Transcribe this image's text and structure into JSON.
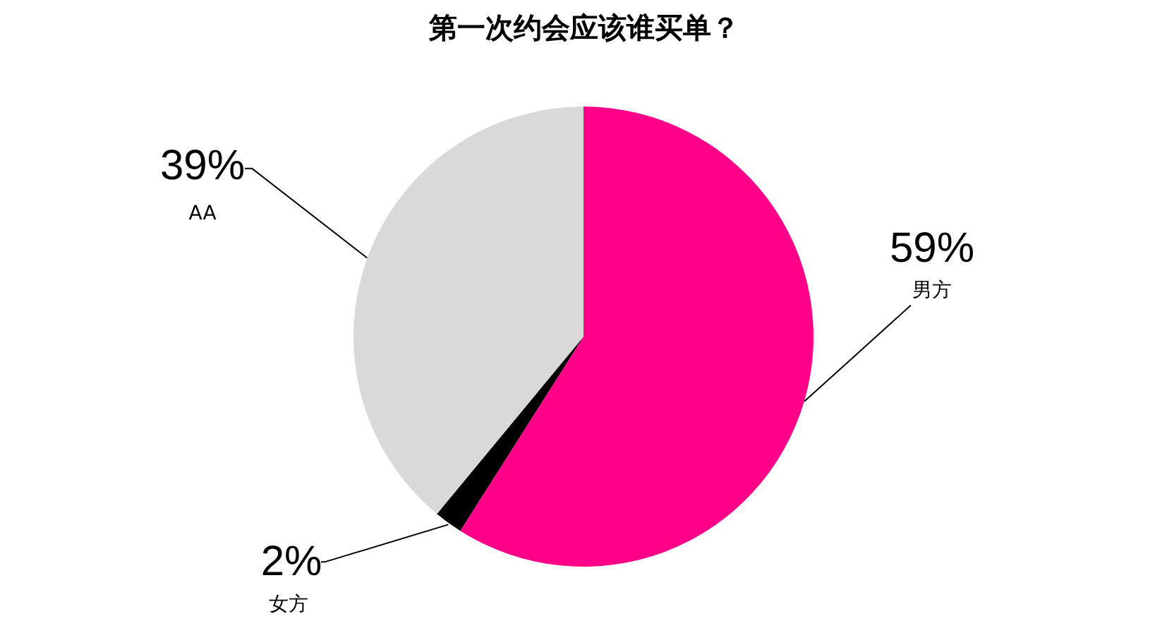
{
  "chart_data": {
    "type": "pie",
    "title": "第一次约会应该谁买单？",
    "categories": [
      "男方",
      "女方",
      "AA"
    ],
    "values": [
      59,
      2,
      39
    ],
    "colors": [
      "#ff0088",
      "#000000",
      "#d9d9d9"
    ],
    "value_labels": [
      "59%",
      "2%",
      "39%"
    ]
  }
}
